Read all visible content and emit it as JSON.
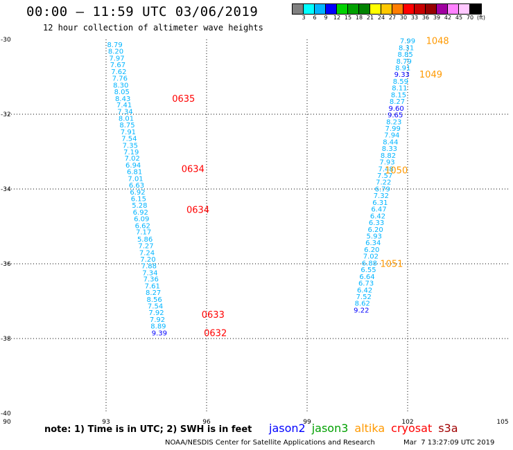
{
  "title": "00:00 – 11:59 UTC 03/06/2019",
  "subtitle": "12 hour collection of altimeter wave heights",
  "colorbar": {
    "colors": [
      "#808080",
      "#00ffff",
      "#00b4ff",
      "#0000ff",
      "#00d200",
      "#00a000",
      "#008200",
      "#ffff00",
      "#ffc800",
      "#ff7d00",
      "#ff0000",
      "#c80000",
      "#960000",
      "#a000a0",
      "#ff82ff",
      "#ffc8ff",
      "#000000"
    ],
    "labels": [
      "3",
      "6",
      "9",
      "12",
      "15",
      "18",
      "21",
      "24",
      "27",
      "30",
      "33",
      "36",
      "39",
      "42",
      "45",
      "70",
      "(ft)"
    ]
  },
  "note": "note: 1) Time is in UTC; 2) SWH is in feet",
  "legend": [
    {
      "name": "jason2",
      "color": "#0000ff"
    },
    {
      "name": "jason3",
      "color": "#00a000"
    },
    {
      "name": "altika",
      "color": "#ff9900"
    },
    {
      "name": "cryosat",
      "color": "#ff0000"
    },
    {
      "name": "s3a",
      "color": "#a00000"
    }
  ],
  "footer": "NOAA/NESDIS Center for Satellite Applications and Research",
  "footer_date": "Mar  7 13:27:09 UTC 2019",
  "chart_data": {
    "type": "scatter",
    "xlim": [
      90,
      105
    ],
    "ylim": [
      -40,
      -30
    ],
    "x_ticks": [
      "90",
      "93",
      "96",
      "99",
      "102",
      "105"
    ],
    "y_ticks": [
      "-30",
      "-32",
      "-34",
      "-36",
      "-38",
      "-40"
    ],
    "grid": true,
    "series": [
      {
        "name": "jason3",
        "color": "#00b4ff",
        "points": [
          [
            93.03,
            -30.13,
            "8.79"
          ],
          [
            93.06,
            -30.31,
            "8.20"
          ],
          [
            93.09,
            -30.49,
            "7.97"
          ],
          [
            93.12,
            -30.67,
            "7.67"
          ],
          [
            93.15,
            -30.85,
            "7.62"
          ],
          [
            93.18,
            -31.03,
            "7.76"
          ],
          [
            93.21,
            -31.21,
            "8.30"
          ],
          [
            93.24,
            -31.39,
            "8.05"
          ],
          [
            93.27,
            -31.57,
            "8.43"
          ],
          [
            93.31,
            -31.74,
            "7.41"
          ],
          [
            93.34,
            -31.92,
            "7.34"
          ],
          [
            93.37,
            -32.1,
            "8.01"
          ],
          [
            93.4,
            -32.28,
            "8.75"
          ],
          [
            93.43,
            -32.46,
            "7.91"
          ],
          [
            93.46,
            -32.64,
            "7.54"
          ],
          [
            93.49,
            -32.82,
            "7.35"
          ],
          [
            93.52,
            -33.0,
            "7.19"
          ],
          [
            93.55,
            -33.17,
            "7.02"
          ],
          [
            93.58,
            -33.35,
            "6.94"
          ],
          [
            93.62,
            -33.53,
            "6.81"
          ],
          [
            93.65,
            -33.71,
            "7.01"
          ],
          [
            93.68,
            -33.89,
            "6.63"
          ],
          [
            93.71,
            -34.07,
            "6.92"
          ],
          [
            93.74,
            -34.25,
            "6.15"
          ],
          [
            93.77,
            -34.43,
            "5.28"
          ],
          [
            93.8,
            -34.61,
            "6.92"
          ],
          [
            93.83,
            -34.79,
            "6.09"
          ],
          [
            93.86,
            -34.97,
            "6.62"
          ],
          [
            93.89,
            -35.14,
            "7.17"
          ],
          [
            93.93,
            -35.33,
            "5.86"
          ],
          [
            93.96,
            -35.51,
            "7.27"
          ],
          [
            93.99,
            -35.69,
            "7.24"
          ],
          [
            94.02,
            -35.87,
            "7.20"
          ],
          [
            94.05,
            -36.05,
            "7.88"
          ],
          [
            94.08,
            -36.23,
            "7.34"
          ],
          [
            94.11,
            -36.4,
            "7.36"
          ],
          [
            94.15,
            -36.58,
            "7.61"
          ],
          [
            94.18,
            -36.76,
            "8.27"
          ],
          [
            94.21,
            -36.94,
            "8.56"
          ],
          [
            94.24,
            -37.12,
            "7.54"
          ],
          [
            94.27,
            -37.3,
            "7.92"
          ],
          [
            94.3,
            -37.48,
            "7.92"
          ],
          [
            94.33,
            -37.66,
            "8.89"
          ],
          [
            94.36,
            -37.84,
            "9.39"
          ],
          [
            101.77,
            -30.03,
            "7.99"
          ],
          [
            101.73,
            -30.21,
            "8.31"
          ],
          [
            101.7,
            -30.39,
            "8.85"
          ],
          [
            101.66,
            -30.57,
            "8.79"
          ],
          [
            101.63,
            -30.75,
            "8.91"
          ],
          [
            101.6,
            -30.93,
            "9.33"
          ],
          [
            101.56,
            -31.11,
            "8.59"
          ],
          [
            101.53,
            -31.29,
            "8.11"
          ],
          [
            101.5,
            -31.47,
            "8.15"
          ],
          [
            101.46,
            -31.65,
            "8.27"
          ],
          [
            101.43,
            -31.83,
            "9.60"
          ],
          [
            101.4,
            -32.01,
            "9.65"
          ],
          [
            101.36,
            -32.19,
            "8.23"
          ],
          [
            101.33,
            -32.37,
            "7.99"
          ],
          [
            101.3,
            -32.55,
            "7.94"
          ],
          [
            101.26,
            -32.73,
            "8.44"
          ],
          [
            101.23,
            -32.91,
            "8.33"
          ],
          [
            101.19,
            -33.09,
            "8.82"
          ],
          [
            101.16,
            -33.27,
            "7.93"
          ],
          [
            101.12,
            -33.45,
            "7.48"
          ],
          [
            101.09,
            -33.63,
            "7.57"
          ],
          [
            101.05,
            -33.81,
            "7.22"
          ],
          [
            101.02,
            -33.99,
            "6.79"
          ],
          [
            100.98,
            -34.17,
            "7.32"
          ],
          [
            100.95,
            -34.35,
            "6.31"
          ],
          [
            100.91,
            -34.53,
            "6.47"
          ],
          [
            100.88,
            -34.71,
            "6.42"
          ],
          [
            100.84,
            -34.89,
            "6.33"
          ],
          [
            100.81,
            -35.07,
            "6.20"
          ],
          [
            100.77,
            -35.25,
            "5.93"
          ],
          [
            100.74,
            -35.43,
            "6.34"
          ],
          [
            100.7,
            -35.61,
            "6.20"
          ],
          [
            100.67,
            -35.79,
            "7.02"
          ],
          [
            100.63,
            -35.97,
            "6.88"
          ],
          [
            100.6,
            -36.15,
            "6.55"
          ],
          [
            100.56,
            -36.33,
            "6.64"
          ],
          [
            100.53,
            -36.51,
            "6.73"
          ],
          [
            100.49,
            -36.69,
            "6.42"
          ],
          [
            100.46,
            -36.87,
            "7.52"
          ],
          [
            100.42,
            -37.05,
            "8.62"
          ],
          [
            100.39,
            -37.23,
            "9.22"
          ]
        ],
        "deep_values": [
          "9.39",
          "9.33",
          "9.60",
          "9.65",
          "9.22"
        ],
        "deep_color": "#0000ff"
      }
    ],
    "time_labels": [
      {
        "x": 94.97,
        "y": -31.57,
        "text": "0635",
        "color": "#ff0000"
      },
      {
        "x": 95.25,
        "y": -33.45,
        "text": "0634",
        "color": "#ff0000"
      },
      {
        "x": 95.4,
        "y": -34.55,
        "text": "0634",
        "color": "#ff0000"
      },
      {
        "x": 95.85,
        "y": -37.35,
        "text": "0633",
        "color": "#ff0000"
      },
      {
        "x": 95.92,
        "y": -37.84,
        "text": "0632",
        "color": "#ff0000"
      },
      {
        "x": 102.55,
        "y": -30.03,
        "text": "1048",
        "color": "#ff9900"
      },
      {
        "x": 102.35,
        "y": -30.93,
        "text": "1049",
        "color": "#ff9900"
      },
      {
        "x": 101.32,
        "y": -33.49,
        "text": "1050",
        "color": "#ff9900"
      },
      {
        "x": 101.18,
        "y": -35.99,
        "text": "1051",
        "color": "#ff9900"
      }
    ]
  }
}
